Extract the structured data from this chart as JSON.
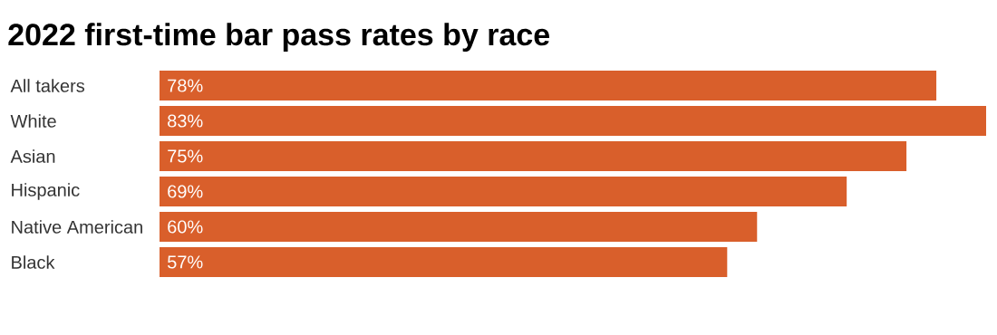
{
  "chart_data": {
    "type": "bar",
    "orientation": "horizontal",
    "title": "2022 first-time bar pass rates by race",
    "categories": [
      "All takers",
      "White",
      "Asian",
      "Hispanic",
      "Native American",
      "Black"
    ],
    "values": [
      78,
      83,
      75,
      69,
      60,
      57
    ],
    "value_labels": [
      "78%",
      "83%",
      "75%",
      "69%",
      "60%",
      "57%"
    ],
    "color": "#d95f2b"
  }
}
